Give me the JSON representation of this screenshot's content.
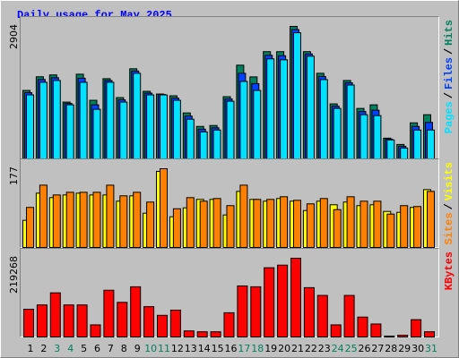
{
  "title": "Daily usage for May 2025",
  "legend_separator": "/",
  "chart_data": [
    {
      "type": "bar",
      "ylim": [
        0,
        2904
      ],
      "yticks": [
        2904
      ],
      "series": [
        {
          "name": "Hits",
          "color": "#00805c",
          "values": [
            1500,
            1800,
            1840,
            1245,
            1856,
            1284,
            1758,
            1343,
            1975,
            1481,
            1422,
            1383,
            1007,
            711,
            731,
            1363,
            2054,
            1797,
            2350,
            2350,
            2904,
            2350,
            1876,
            1205,
            1718,
            1106,
            1185,
            454,
            316,
            790,
            968
          ]
        },
        {
          "name": "Files",
          "color": "#0040ff",
          "values": [
            1451,
            1740,
            1779,
            1215,
            1768,
            1185,
            1718,
            1294,
            1925,
            1441,
            1412,
            1333,
            938,
            651,
            681,
            1313,
            1876,
            1649,
            2271,
            2261,
            2834,
            2300,
            1807,
            1155,
            1668,
            1037,
            1066,
            434,
            276,
            711,
            800
          ]
        },
        {
          "name": "Pages",
          "color": "#00e0ff",
          "values": [
            1402,
            1679,
            1718,
            1185,
            1679,
            1086,
            1679,
            1244,
            1876,
            1402,
            1402,
            1284,
            869,
            592,
            632,
            1264,
            1698,
            1501,
            2192,
            2172,
            2765,
            2251,
            1738,
            1106,
            1619,
            968,
            948,
            415,
            237,
            632,
            632
          ]
        }
      ]
    },
    {
      "type": "bar",
      "ylim": [
        0,
        177
      ],
      "yticks": [
        177
      ],
      "series": [
        {
          "name": "Visits",
          "color": "#ffff00",
          "values": [
            61,
            122,
            112,
            118,
            122,
            118,
            118,
            104,
            116,
            77,
            171,
            69,
            89,
            108,
            108,
            73,
            126,
            108,
            104,
            110,
            104,
            83,
            104,
            96,
            102,
            94,
            96,
            81,
            79,
            90,
            130
          ]
        },
        {
          "name": "Sites",
          "color": "#ff8000",
          "values": [
            90,
            140,
            118,
            124,
            124,
            124,
            140,
            116,
            124,
            102,
            177,
            87,
            112,
            104,
            110,
            94,
            140,
            108,
            108,
            114,
            106,
            98,
            110,
            85,
            114,
            104,
            104,
            75,
            94,
            92,
            126
          ]
        }
      ]
    },
    {
      "type": "bar",
      "ylim": [
        0,
        219268
      ],
      "yticks": [
        219268
      ],
      "series": [
        {
          "name": "KBytes",
          "color": "#ff0000",
          "values": [
            77104,
            89151,
            122884,
            89151,
            89151,
            33733,
            130113,
            96380,
            139751,
            84333,
            60238,
            74695,
            16867,
            14457,
            14457,
            67466,
            142161,
            139751,
            192760,
            199989,
            219268,
            137342,
            115656,
            33733,
            115656,
            55419,
            36143,
            2410,
            4819,
            48190,
            14457
          ]
        }
      ],
      "categories": [
        "1",
        "2",
        "3",
        "4",
        "5",
        "6",
        "7",
        "8",
        "9",
        "10",
        "11",
        "12",
        "13",
        "14",
        "15",
        "16",
        "17",
        "18",
        "19",
        "20",
        "21",
        "22",
        "23",
        "24",
        "25",
        "26",
        "27",
        "28",
        "29",
        "30",
        "31"
      ],
      "category_colors": [
        "#000000",
        "#000000",
        "#00805c",
        "#00805c",
        "#000000",
        "#000000",
        "#000000",
        "#000000",
        "#000000",
        "#00805c",
        "#00805c",
        "#000000",
        "#000000",
        "#000000",
        "#000000",
        "#000000",
        "#00805c",
        "#00805c",
        "#000000",
        "#000000",
        "#000000",
        "#000000",
        "#000000",
        "#00805c",
        "#00805c",
        "#000000",
        "#000000",
        "#000000",
        "#000000",
        "#000000",
        "#00805c"
      ]
    }
  ]
}
